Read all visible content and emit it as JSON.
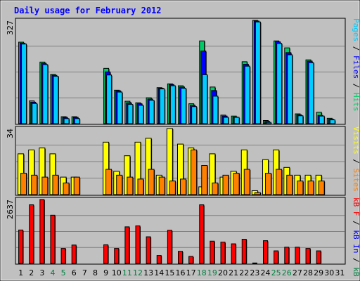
{
  "title": "Daily usage for February 2012",
  "colors": {
    "background": "#c0c0c0",
    "border": "#000000",
    "gridline": "#808080",
    "hits": "#00cc66",
    "files": "#0000ff",
    "pages": "#00ccff",
    "visits": "#ffff00",
    "sites": "#ff8000",
    "kb_in": "#0000ff",
    "kb_out": "#008040",
    "kb_f": "#ff0000",
    "weekday_label": "#000000",
    "weekend_label": "#008040"
  },
  "chart_data": [
    {
      "type": "bar",
      "panel": "top",
      "max_label": "327",
      "ylim": [
        0,
        327
      ],
      "legend": [
        {
          "key": "pages",
          "text": "Pages",
          "color": "#00ccff"
        },
        {
          "key": "sep1",
          "text": " / ",
          "color": "#000000"
        },
        {
          "key": "files",
          "text": "Files",
          "color": "#0000ff"
        },
        {
          "key": "sep2",
          "text": " / ",
          "color": "#000000"
        },
        {
          "key": "hits",
          "text": "Hits",
          "color": "#00cc66"
        }
      ],
      "categories": [
        1,
        2,
        3,
        4,
        5,
        6,
        7,
        8,
        9,
        10,
        11,
        12,
        13,
        14,
        15,
        16,
        17,
        18,
        19,
        20,
        21,
        22,
        23,
        24,
        25,
        26,
        27,
        28,
        29,
        30,
        31
      ],
      "series": [
        {
          "key": "hits",
          "values": [
            258,
            72,
            195,
            156,
            22,
            22,
            0,
            0,
            175,
            106,
            71,
            66,
            82,
            114,
            126,
            120,
            63,
            262,
            116,
            27,
            24,
            196,
            327,
            10,
            262,
            240,
            31,
            202,
            36,
            17,
            0
          ]
        },
        {
          "key": "files",
          "values": [
            255,
            68,
            191,
            153,
            20,
            20,
            0,
            0,
            164,
            104,
            66,
            63,
            78,
            112,
            124,
            116,
            58,
            230,
            105,
            24,
            21,
            188,
            325,
            7,
            259,
            225,
            28,
            198,
            26,
            14,
            0
          ]
        },
        {
          "key": "pages",
          "values": [
            252,
            64,
            187,
            150,
            16,
            16,
            0,
            0,
            154,
            100,
            61,
            58,
            74,
            110,
            120,
            112,
            54,
            155,
            87,
            20,
            20,
            182,
            322,
            4,
            254,
            218,
            25,
            193,
            24,
            12,
            0
          ]
        }
      ]
    },
    {
      "type": "bar",
      "panel": "middle",
      "max_label": "34",
      "ylim": [
        0,
        34
      ],
      "legend": [
        {
          "key": "visits",
          "text": "Visits",
          "color": "#ffff00"
        },
        {
          "key": "sep1",
          "text": " / ",
          "color": "#000000"
        },
        {
          "key": "sites",
          "text": "Sites",
          "color": "#ff8000"
        }
      ],
      "categories": [
        1,
        2,
        3,
        4,
        5,
        6,
        7,
        8,
        9,
        10,
        11,
        12,
        13,
        14,
        15,
        16,
        17,
        18,
        19,
        20,
        21,
        22,
        23,
        24,
        25,
        26,
        27,
        28,
        29,
        30,
        31
      ],
      "series": [
        {
          "key": "visits",
          "values": [
            21,
            23,
            24,
            21,
            9,
            9,
            0,
            0,
            27,
            12,
            20,
            27,
            29,
            10,
            34,
            26,
            24,
            4,
            21,
            9,
            12,
            23,
            2,
            18,
            23,
            14,
            10,
            10,
            10,
            0,
            0
          ]
        },
        {
          "key": "sites",
          "values": [
            11,
            10,
            9,
            10,
            6,
            9,
            0,
            0,
            13,
            10,
            9,
            8,
            13,
            9,
            7,
            8,
            23,
            15,
            6,
            10,
            11,
            13,
            1,
            11,
            13,
            10,
            7,
            7,
            7,
            0,
            0
          ]
        }
      ]
    },
    {
      "type": "bar",
      "panel": "bottom",
      "max_label": "2637",
      "ylim": [
        0,
        2637
      ],
      "legend": [
        {
          "key": "kb_f",
          "text": "kB F",
          "color": "#ff0000"
        },
        {
          "key": "sep1",
          "text": " / ",
          "color": "#000000"
        },
        {
          "key": "kb_in",
          "text": "kB In",
          "color": "#0000ff"
        },
        {
          "key": "sep2",
          "text": " / ",
          "color": "#000000"
        },
        {
          "key": "kb_out",
          "text": "kB Out",
          "color": "#008040"
        }
      ],
      "categories": [
        1,
        2,
        3,
        4,
        5,
        6,
        7,
        8,
        9,
        10,
        11,
        12,
        13,
        14,
        15,
        16,
        17,
        18,
        19,
        20,
        21,
        22,
        23,
        24,
        25,
        26,
        27,
        28,
        29,
        30,
        31
      ],
      "series": [
        {
          "key": "kb_f",
          "values": [
            1380,
            2420,
            2637,
            1990,
            620,
            760,
            0,
            0,
            770,
            620,
            1510,
            1550,
            1100,
            330,
            1370,
            500,
            290,
            2420,
            920,
            880,
            810,
            1000,
            20,
            940,
            520,
            670,
            670,
            620,
            520,
            0,
            0
          ]
        }
      ]
    }
  ],
  "x_axis": {
    "labels": [
      "1",
      "2",
      "3",
      "4",
      "5",
      "6",
      "7",
      "8",
      "9",
      "10",
      "11",
      "12",
      "13",
      "14",
      "15",
      "16",
      "17",
      "18",
      "19",
      "20",
      "21",
      "22",
      "23",
      "24",
      "25",
      "26",
      "27",
      "28",
      "29",
      "30",
      "31"
    ],
    "weekend": [
      4,
      5,
      11,
      12,
      18,
      19,
      25,
      26
    ]
  }
}
